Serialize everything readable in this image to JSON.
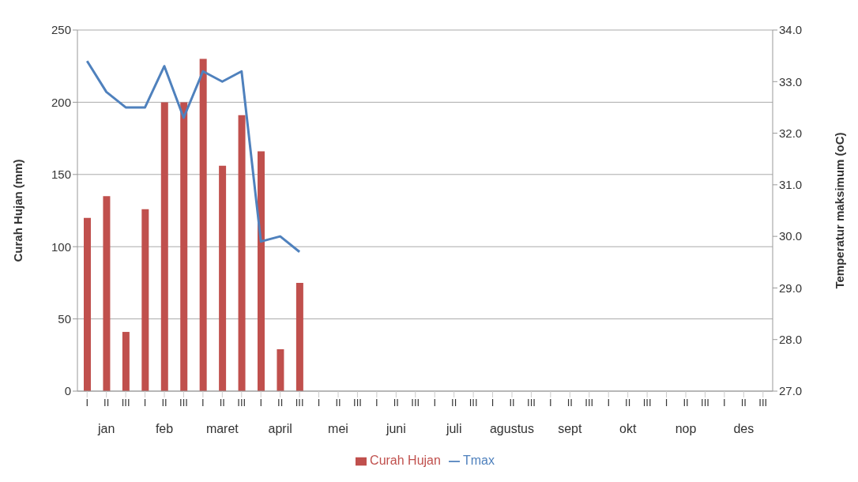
{
  "chart_data": {
    "type": "bar",
    "ylabel": "Curah Hujan (mm)",
    "y2label": "Temperatur maksimum (oC)",
    "categories": [
      "I",
      "II",
      "III",
      "I",
      "II",
      "III",
      "I",
      "II",
      "III",
      "I",
      "II",
      "III",
      "I",
      "II",
      "III",
      "I",
      "II",
      "III",
      "I",
      "II",
      "III",
      "I",
      "II",
      "III",
      "I",
      "II",
      "III",
      "I",
      "II",
      "III",
      "I",
      "II",
      "III",
      "I",
      "II",
      "III"
    ],
    "annotations": [
      "jan",
      "feb",
      "maret",
      "april",
      "mei",
      "juni",
      "juli",
      "agustus",
      "sept",
      "okt",
      "nop",
      "des"
    ],
    "series": [
      {
        "name": "Curah Hujan",
        "color": "#c0504d",
        "values": [
          120,
          135,
          41,
          126,
          200,
          200,
          230,
          156,
          191,
          166,
          29,
          75,
          null,
          null,
          null,
          null,
          null,
          null,
          null,
          null,
          null,
          null,
          null,
          null,
          null,
          null,
          null,
          null,
          null,
          null,
          null,
          null,
          null,
          null,
          null,
          null
        ]
      },
      {
        "name": "Tmax",
        "type": "line",
        "axis": "y2",
        "color": "#4f81bd",
        "values": [
          33.4,
          32.8,
          32.5,
          32.5,
          33.3,
          32.3,
          33.2,
          33.0,
          33.2,
          29.9,
          30.0,
          29.7,
          null,
          null,
          null,
          null,
          null,
          null,
          null,
          null,
          null,
          null,
          null,
          null,
          null,
          null,
          null,
          null,
          null,
          null,
          null,
          null,
          null,
          null,
          null,
          null
        ]
      }
    ],
    "ylim": [
      0,
      250
    ],
    "yticks": [
      0,
      50,
      100,
      150,
      200,
      250
    ],
    "y2lim": [
      27,
      34
    ],
    "y2ticks": [
      {
        "value": 27,
        "label": "27.0"
      },
      {
        "value": 28,
        "label": "28.0"
      },
      {
        "value": 29,
        "label": "29.0"
      },
      {
        "value": 30,
        "label": "30.0"
      },
      {
        "value": 31,
        "label": "31.0"
      },
      {
        "value": 32,
        "label": "32.0"
      },
      {
        "value": 33,
        "label": "33.0"
      },
      {
        "value": 34,
        "label": "34.0"
      }
    ],
    "grid": "y",
    "legend": "bottom",
    "marker": "none",
    "line_style": "solid"
  }
}
